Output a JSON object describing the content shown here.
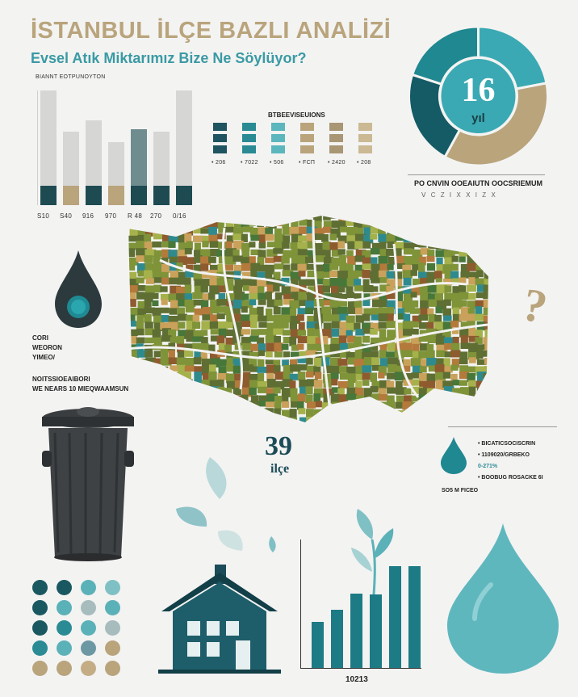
{
  "header": {
    "title": "İSTANBUL İLÇE BAZLI ANALİZİ",
    "subtitle": "Evsel Atık Miktarımız Bize Ne Söylüyor?",
    "caption": "ΒΙΑΝΝΤ ΕΟΤΡUΝΟΥΤΟΝ"
  },
  "left_chart": {
    "bars": [
      {
        "label": "S10",
        "value": 100
      },
      {
        "label": "S40",
        "value": 64
      },
      {
        "label": "916",
        "value": 74
      },
      {
        "label": "970",
        "value": 55
      },
      {
        "label": "R 48",
        "value": 66
      },
      {
        "label": "270",
        "value": 64
      },
      {
        "label": "0/16",
        "value": 100
      }
    ],
    "colors": {
      "light": "#d6d6d5",
      "tan": "#b9a47c",
      "dark": "#1e4b52",
      "gray": "#9fa7a4",
      "teal_gray": "#6f8d8f"
    }
  },
  "legend_block": {
    "title": "ΒΤΒΕΕVISEUΙONS",
    "labels": [
      "• 206",
      "• 7022",
      "• 506",
      "• FCΠ",
      "• 2420",
      "• 208"
    ],
    "colors": [
      "#1e5560",
      "#2a8b94",
      "#5bb7bd",
      "#b9a47c",
      "#a89675",
      "#cbb994"
    ]
  },
  "donut": {
    "number": "16",
    "unit": "yıl",
    "segments": [
      {
        "value": 22,
        "color": "#3aa9b3"
      },
      {
        "value": 36,
        "color": "#b9a47c"
      },
      {
        "value": 22,
        "color": "#145b66"
      },
      {
        "value": 20,
        "color": "#1f8891"
      }
    ],
    "caption_title": "PO CNVIN OOEAIUTN OOCSRIEMUM",
    "caption_sub": "Ⅴ C  Z  Ⅰ  Ⅹ  Ⅹ  I  Z  Ⅹ"
  },
  "left_text": {
    "line1": "CORI",
    "line2": "WEORON",
    "line3": "YIMEO/",
    "line4": "NOITSSIOEAIBORI",
    "line5": "WE NEARS 10 MIEQWAAMSUN"
  },
  "map": {
    "district_count": "39",
    "district_label": "ilçe",
    "colors": [
      "#7f9339",
      "#a5b14a",
      "#5f6f33",
      "#b47a3c",
      "#2f8a8e",
      "#c9a15a",
      "#8e5b2f",
      "#48773a"
    ]
  },
  "right_list": {
    "items": [
      "• BICATICSOCISCRIN",
      "• 1109020/GRBEKO",
      "0-271%",
      "• BOOBUG ROSACKE 6I"
    ],
    "footer": "SO5 M FICEO"
  },
  "bottom_chart": {
    "values": [
      36,
      45,
      58,
      57,
      79,
      79
    ],
    "label": "10213",
    "color": "#1d7b85"
  },
  "dots": {
    "colors": [
      [
        "#1a5861",
        "#1a5861",
        "#5bb1b8",
        "#7fc0c4"
      ],
      [
        "#1a5861",
        "#5bb1b8",
        "#a7bcbc",
        "#5bb1b8"
      ],
      [
        "#1a5861",
        "#2a8b94",
        "#5bb1b8",
        "#a7bcbc"
      ],
      [
        "#2a8b94",
        "#5bb1b8",
        "#6c98a3",
        "#b9a47c"
      ],
      [
        "#b9a47c",
        "#b9a47c",
        "#c4ad85",
        "#b9a47c"
      ]
    ]
  }
}
